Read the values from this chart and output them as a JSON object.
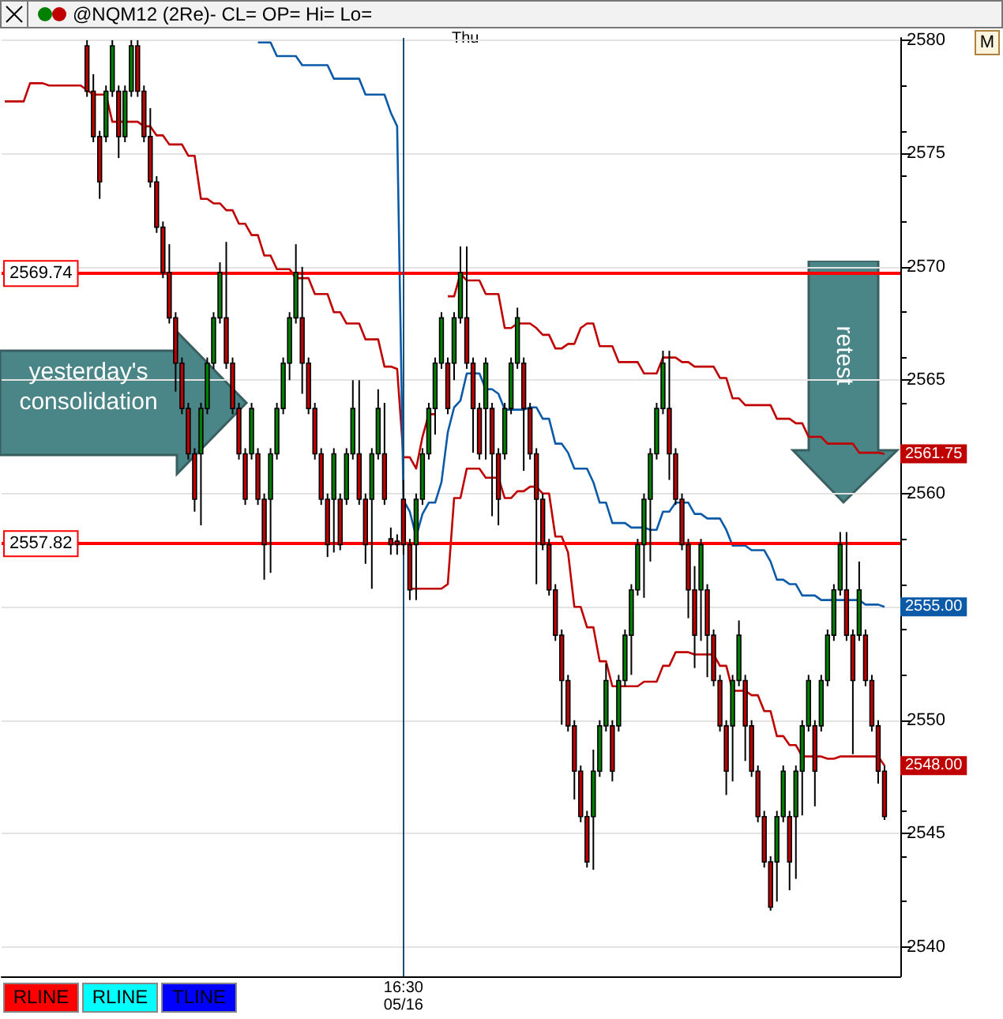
{
  "chart_data": {
    "type": "candlestick",
    "title": "@NQM12 (2Re)- CL= OP= Hi= Lo=",
    "annotations": [
      "Thu",
      "yesterday's consolidation",
      "retest",
      "M",
      "RLINE",
      "RLINE",
      "TLINE"
    ],
    "categories": [
      null,
      null,
      null,
      null,
      null,
      null,
      null,
      null,
      null,
      null,
      null,
      null,
      null,
      null,
      null,
      null,
      null,
      null,
      null,
      null,
      null,
      null,
      null,
      null,
      null,
      null,
      null,
      null,
      null,
      null,
      null,
      null,
      null,
      null,
      null,
      null,
      null,
      null,
      null,
      null,
      null,
      null,
      null,
      null,
      null,
      null,
      null,
      null,
      null,
      null,
      null,
      null,
      null,
      null,
      null,
      null,
      null,
      null,
      null,
      null,
      null,
      null,
      null,
      "16:30\n05/16",
      null,
      null,
      null,
      null,
      null,
      null,
      null,
      null,
      null,
      null,
      null,
      null,
      null,
      null,
      null,
      null,
      null,
      null,
      null,
      null,
      null,
      null,
      null,
      null,
      null,
      null,
      null,
      null,
      null,
      null,
      null,
      null,
      null,
      null,
      null,
      null,
      null,
      null,
      null,
      null,
      null,
      null,
      null,
      null,
      null,
      null,
      null,
      null,
      null,
      null,
      null,
      null,
      null,
      null,
      null,
      null,
      null,
      null,
      null,
      null,
      null,
      null,
      null,
      null,
      null,
      null,
      null,
      null,
      null,
      null,
      null,
      null,
      null,
      null,
      null,
      null,
      null,
      null
    ],
    "ohlc": [
      null,
      null,
      null,
      null,
      null,
      null,
      null,
      null,
      null,
      null,
      null,
      null,
      null,
      [
        2579.75,
        2580,
        2577.5,
        2577.75
      ],
      [
        2577.75,
        2578.5,
        2575.5,
        2575.75
      ],
      [
        2575.75,
        2576,
        2573,
        2573.75
      ],
      [
        2575.75,
        2578,
        2575.5,
        2577.75
      ],
      [
        2577.75,
        2580,
        2577.5,
        2579.75
      ],
      [
        2577.75,
        2578,
        2574.8,
        2575.75
      ],
      [
        2575.75,
        2578,
        2575.5,
        2577.75
      ],
      [
        2577.75,
        2580,
        2577.5,
        2579.75
      ],
      [
        2579.75,
        2580,
        2577.5,
        2577.75
      ],
      [
        2577.75,
        2578,
        2575.5,
        2575.75
      ],
      [
        2575.75,
        2577,
        2573.5,
        2573.75
      ],
      [
        2573.75,
        2574,
        2571.5,
        2571.75
      ],
      [
        2571.75,
        2572,
        2569.5,
        2569.75
      ],
      [
        2569.75,
        2571,
        2567.5,
        2567.75
      ],
      [
        2567.75,
        2568,
        2564.5,
        2565.75
      ],
      [
        2565.75,
        2566,
        2563.5,
        2563.75
      ],
      [
        2563.75,
        2564,
        2561.5,
        2561.75
      ],
      [
        2561.75,
        2562,
        2559.2,
        2559.75
      ],
      [
        2561.75,
        2564,
        2558.6,
        2563.75
      ],
      [
        2563.75,
        2566,
        2563.5,
        2565.75
      ],
      [
        2565.75,
        2568,
        2565.5,
        2567.75
      ],
      [
        2567.75,
        2570.2,
        2567.5,
        2569.75
      ],
      [
        2567.75,
        2571.1,
        2565.5,
        2565.75
      ],
      [
        2565.75,
        2566,
        2563.5,
        2563.75
      ],
      [
        2563.75,
        2564,
        2561.5,
        2561.75
      ],
      [
        2561.75,
        2562,
        2559.5,
        2559.75
      ],
      [
        2561.75,
        2564,
        2561.5,
        2563.75
      ],
      [
        2561.75,
        2562,
        2559.5,
        2559.75
      ],
      [
        2559.75,
        2560,
        2556.2,
        2557.75
      ],
      [
        2559.75,
        2562,
        2556.5,
        2561.75
      ],
      [
        2561.75,
        2564,
        2561.5,
        2563.75
      ],
      [
        2563.75,
        2566,
        2563.5,
        2565.75
      ],
      [
        2565.75,
        2568,
        2565,
        2567.75
      ],
      [
        2567.75,
        2571,
        2567.5,
        2569.75
      ],
      [
        2567.75,
        2570,
        2564.4,
        2565.75
      ],
      [
        2565.75,
        2566,
        2563.5,
        2563.75
      ],
      [
        2563.75,
        2564,
        2561.5,
        2561.75
      ],
      [
        2561.75,
        2562,
        2559.5,
        2559.75
      ],
      [
        2559.75,
        2560,
        2557.2,
        2557.75
      ],
      [
        2559.75,
        2562,
        2557.4,
        2561.75
      ],
      [
        2559.75,
        2560,
        2557.5,
        2557.75
      ],
      [
        2559.75,
        2562,
        2559.5,
        2561.75
      ],
      [
        2561.75,
        2565,
        2561.5,
        2563.75
      ],
      [
        2561.75,
        2565,
        2559.5,
        2559.75
      ],
      [
        2559.75,
        2560,
        2556.9,
        2557.75
      ],
      [
        2559.75,
        2562,
        2555.8,
        2561.75
      ],
      [
        2561.75,
        2564.6,
        2561.5,
        2563.75
      ],
      [
        2561.75,
        2564,
        2559.5,
        2559.75
      ],
      [
        2558,
        2558.5,
        2557.3,
        2557.75
      ],
      [
        2557.9,
        2558.2,
        2557.3,
        2557.75
      ],
      [
        2559.75,
        2560.6,
        2557.3,
        2557.75
      ],
      [
        2557.75,
        2558,
        2555.3,
        2555.75
      ],
      [
        2557.75,
        2560,
        2555.3,
        2559.75
      ],
      [
        2559.75,
        2562,
        2559.5,
        2561.75
      ],
      [
        2561.75,
        2564,
        2561.5,
        2563.75
      ],
      [
        2563.75,
        2566,
        2562.6,
        2565.75
      ],
      [
        2565.75,
        2568,
        2565.5,
        2567.75
      ],
      [
        2565.75,
        2566,
        2563.5,
        2563.75
      ],
      [
        2565.75,
        2568,
        2565,
        2567.75
      ],
      [
        2567.75,
        2570.9,
        2567.5,
        2569.75
      ],
      [
        2567.75,
        2570.9,
        2565.5,
        2565.75
      ],
      [
        2565.75,
        2566,
        2561.8,
        2563.75
      ],
      [
        2563.75,
        2564,
        2561.5,
        2561.75
      ],
      [
        2563.75,
        2566,
        2561.5,
        2565.75
      ],
      [
        2563.75,
        2564,
        2559,
        2561.75
      ],
      [
        2561.75,
        2562,
        2558.6,
        2559.75
      ],
      [
        2561.75,
        2564,
        2561.5,
        2563.75
      ],
      [
        2563.75,
        2566,
        2563.5,
        2565.75
      ],
      [
        2565.75,
        2568.2,
        2565.5,
        2567.75
      ],
      [
        2565.75,
        2566,
        2561,
        2563.75
      ],
      [
        2563.75,
        2564,
        2561.5,
        2561.75
      ],
      [
        2561.75,
        2562,
        2556,
        2559.75
      ],
      [
        2559.75,
        2560,
        2557.5,
        2557.75
      ],
      [
        2557.75,
        2558,
        2555.5,
        2555.75
      ],
      [
        2555.75,
        2556,
        2553.5,
        2553.75
      ],
      [
        2553.75,
        2554,
        2549.8,
        2551.75
      ],
      [
        2551.75,
        2552,
        2549.5,
        2549.75
      ],
      [
        2549.75,
        2550,
        2546.5,
        2547.75
      ],
      [
        2547.75,
        2548,
        2545.5,
        2545.75
      ],
      [
        2545.75,
        2546,
        2543.5,
        2543.75
      ],
      [
        2545.75,
        2548.7,
        2543.4,
        2547.75
      ],
      [
        2547.75,
        2550,
        2547.5,
        2549.75
      ],
      [
        2549.75,
        2552.5,
        2549.5,
        2551.75
      ],
      [
        2549.75,
        2550,
        2547.3,
        2547.75
      ],
      [
        2549.75,
        2552,
        2549.5,
        2551.75
      ],
      [
        2551.75,
        2554,
        2551.5,
        2553.75
      ],
      [
        2553.75,
        2556,
        2552,
        2555.75
      ],
      [
        2555.75,
        2558,
        2555.5,
        2557.75
      ],
      [
        2557.75,
        2560,
        2555.4,
        2559.75
      ],
      [
        2559.75,
        2562,
        2557,
        2561.75
      ],
      [
        2561.75,
        2564,
        2561.5,
        2563.75
      ],
      [
        2563.75,
        2566.3,
        2563.5,
        2565.75
      ],
      [
        2563.75,
        2566.3,
        2560.6,
        2561.75
      ],
      [
        2561.75,
        2562,
        2559.5,
        2559.75
      ],
      [
        2559.75,
        2560,
        2557.5,
        2557.75
      ],
      [
        2557.75,
        2558,
        2554.5,
        2555.75
      ],
      [
        2555.75,
        2556.8,
        2552.3,
        2553.75
      ],
      [
        2555.75,
        2558,
        2553.5,
        2557.75
      ],
      [
        2555.75,
        2556,
        2551.9,
        2553.75
      ],
      [
        2553.75,
        2554,
        2551.5,
        2551.75
      ],
      [
        2551.75,
        2552,
        2549.5,
        2549.75
      ],
      [
        2549.75,
        2550,
        2546.7,
        2547.75
      ],
      [
        2549.75,
        2552,
        2547.3,
        2551.75
      ],
      [
        2551.75,
        2554.4,
        2551.5,
        2553.75
      ],
      [
        2551.75,
        2552,
        2548.2,
        2549.75
      ],
      [
        2549.75,
        2550,
        2547.5,
        2547.75
      ],
      [
        2547.75,
        2548,
        2545.5,
        2545.75
      ],
      [
        2545.75,
        2546,
        2543.5,
        2543.75
      ],
      [
        2543.75,
        2544,
        2541.6,
        2541.75
      ],
      [
        2543.75,
        2546,
        2542,
        2545.75
      ],
      [
        2545.75,
        2548,
        2545.5,
        2547.75
      ],
      [
        2545.75,
        2546,
        2542.5,
        2543.75
      ],
      [
        2545.75,
        2548,
        2543,
        2547.75
      ],
      [
        2547.75,
        2550,
        2545.8,
        2549.75
      ],
      [
        2549.75,
        2552,
        2549.5,
        2551.75
      ],
      [
        2549.75,
        2550,
        2546.2,
        2547.75
      ],
      [
        2549.75,
        2552,
        2549.5,
        2551.75
      ],
      [
        2551.75,
        2554,
        2551.5,
        2553.75
      ],
      [
        2553.75,
        2556,
        2553.5,
        2555.75
      ],
      [
        2555.75,
        2558.3,
        2555.5,
        2557.75
      ],
      [
        2555.75,
        2558.3,
        2553.5,
        2553.75
      ],
      [
        2553.75,
        2554,
        2548.5,
        2551.75
      ],
      [
        2553.75,
        2557,
        2553.5,
        2555.75
      ],
      [
        2553.75,
        2554,
        2551.5,
        2551.75
      ],
      [
        2551.75,
        2552,
        2549.5,
        2549.75
      ],
      [
        2549.75,
        2550,
        2547.2,
        2547.75
      ],
      [
        2547.75,
        2548,
        2545.6,
        2545.75
      ],
      null,
      null
    ],
    "series": [
      {
        "type": "line",
        "color": "#c00000",
        "values": [
          2577.3,
          2577.3,
          2577.3,
          2577.3,
          2578.1,
          2578.1,
          2578.1,
          2578.0,
          2578.0,
          2578.0,
          2578.0,
          2578.0,
          2578.0,
          2577.8,
          2577.6,
          2577.6,
          2577.6,
          2576.4,
          2576.4,
          2576.4,
          2576.4,
          2576.4,
          2576.2,
          2576.2,
          2575.8,
          2575.8,
          2575.4,
          2575.4,
          2575.4,
          2574.9,
          2574.9,
          2573.0,
          2573.0,
          2572.8,
          2572.8,
          2572.5,
          2572.5,
          2571.9,
          2571.9,
          2571.4,
          2571.4,
          2570.5,
          2570.5,
          2569.9,
          2569.9,
          2569.9,
          2569.5,
          2569.5,
          2569.5,
          2568.8,
          2568.8,
          2568.8,
          2568.0,
          2568.0,
          2567.5,
          2567.5,
          2567.5,
          2566.8,
          2566.8,
          2566.8,
          2565.6,
          2565.6,
          2565.5,
          2561.6,
          2561.6,
          2561.1,
          2562.5,
          2563.5,
          2563.5,
          null,
          2568.7,
          2568.7,
          2569.7,
          2569.4,
          2569.4,
          2569.4,
          2568.8,
          2568.8,
          2568.8,
          2567.3,
          2567.3,
          2567.5,
          2567.5,
          2567.5,
          2567.3,
          2567.0,
          2567.0,
          2566.4,
          2566.4,
          2566.6,
          2566.6,
          2567.3,
          2567.5,
          2567.5,
          2566.5,
          2566.5,
          2566.5,
          2565.8,
          2565.8,
          2565.8,
          2565.8,
          2565.3,
          2565.3,
          2565.3,
          2566.0,
          2566.0,
          2566.0,
          2565.8,
          2565.8,
          2565.6,
          2565.6,
          2565.6,
          2565.6,
          2565.1,
          2565.1,
          2564.2,
          2564.2,
          2563.9,
          2563.9,
          2563.9,
          2563.9,
          2563.9,
          2563.3,
          2563.3,
          2563.3,
          2563.1,
          2563.1,
          2562.5,
          2562.5,
          2562.5,
          2562.2,
          2562.2,
          2562.2,
          2562.2,
          2562.2,
          2561.8,
          2561.8,
          2561.8,
          2561.8,
          2561.75,
          null,
          null
        ],
        "value_labels": [
          null,
          null,
          null,
          null,
          null,
          null,
          null,
          null,
          null,
          null,
          null,
          null,
          null,
          null,
          null,
          null,
          null,
          null,
          null,
          null,
          null,
          null,
          null,
          null,
          null,
          null,
          null,
          null,
          null,
          null,
          null,
          null,
          null,
          null,
          null,
          null,
          null,
          null,
          null,
          null,
          null,
          null,
          null,
          null,
          null,
          null,
          null,
          null,
          null,
          null,
          null,
          null,
          null,
          null,
          null,
          null,
          null,
          null,
          null,
          null,
          null,
          null,
          null,
          null,
          null,
          null,
          null,
          null,
          null,
          null,
          null,
          null,
          null,
          null,
          null,
          null,
          null,
          null,
          null,
          null,
          null,
          null,
          null,
          null,
          null,
          null,
          null,
          null,
          null,
          null,
          null,
          null,
          null,
          null,
          null,
          null,
          null,
          null,
          null,
          null,
          null,
          null,
          null,
          null,
          null,
          null,
          null,
          null,
          null,
          null,
          null,
          null,
          null,
          null,
          null,
          null,
          null,
          null,
          null,
          null,
          null,
          null,
          null,
          null,
          null,
          null,
          null,
          null,
          null,
          null,
          null,
          null,
          null,
          null,
          null,
          null,
          null,
          null,
          null,
          "2561.75",
          null,
          null
        ]
      },
      {
        "type": "line",
        "color": "#0a5aa8",
        "values": [
          null,
          null,
          null,
          null,
          null,
          null,
          null,
          null,
          null,
          null,
          null,
          null,
          null,
          null,
          null,
          null,
          null,
          null,
          null,
          null,
          null,
          null,
          null,
          null,
          null,
          null,
          null,
          null,
          null,
          null,
          null,
          null,
          null,
          null,
          null,
          null,
          null,
          null,
          null,
          null,
          2579.9,
          2579.9,
          2579.9,
          2579.3,
          2579.3,
          2579.3,
          2579.3,
          2578.9,
          2578.9,
          2578.9,
          2578.9,
          2578.9,
          2578.3,
          2578.3,
          2578.3,
          2578.3,
          2578.3,
          2577.6,
          2577.6,
          2577.6,
          2577.6,
          2576.8,
          2576.2,
          2559.7,
          2559.2,
          2558.1,
          2559.1,
          2559.6,
          2559.6,
          2560.5,
          2562.7,
          2563.8,
          2564.1,
          2565.3,
          2565.3,
          2565.3,
          2564.6,
          2564.6,
          2564.4,
          2563.7,
          2563.7,
          2563.7,
          2563.7,
          2563.8,
          2563.8,
          2563.3,
          2563.3,
          2562.2,
          2562.2,
          2561.8,
          2561.1,
          2561.1,
          2561.1,
          2560.5,
          2559.6,
          2559.6,
          2558.7,
          2558.7,
          2558.7,
          2558.5,
          2558.5,
          2558.5,
          2558.4,
          2558.4,
          2559.2,
          2559.2,
          2559.6,
          2559.6,
          2559.6,
          2559.1,
          2559.1,
          2558.9,
          2558.9,
          2558.9,
          2558.4,
          2557.7,
          2557.7,
          2557.7,
          2557.5,
          2557.5,
          2557.5,
          2557.0,
          2556.2,
          2556.2,
          2556.0,
          2556.0,
          2555.5,
          2555.5,
          2555.5,
          2555.3,
          2555.3,
          2555.3,
          2555.3,
          2555.3,
          2555.3,
          2555.3,
          2555.1,
          2555.1,
          2555.1,
          2555.0,
          null,
          null
        ],
        "value_labels": [
          null,
          null,
          null,
          null,
          null,
          null,
          null,
          null,
          null,
          null,
          null,
          null,
          null,
          null,
          null,
          null,
          null,
          null,
          null,
          null,
          null,
          null,
          null,
          null,
          null,
          null,
          null,
          null,
          null,
          null,
          null,
          null,
          null,
          null,
          null,
          null,
          null,
          null,
          null,
          null,
          null,
          null,
          null,
          null,
          null,
          null,
          null,
          null,
          null,
          null,
          null,
          null,
          null,
          null,
          null,
          null,
          null,
          null,
          null,
          null,
          null,
          null,
          null,
          null,
          null,
          null,
          null,
          null,
          null,
          null,
          null,
          null,
          null,
          null,
          null,
          null,
          null,
          null,
          null,
          null,
          null,
          null,
          null,
          null,
          null,
          null,
          null,
          null,
          null,
          null,
          null,
          null,
          null,
          null,
          null,
          null,
          null,
          null,
          null,
          null,
          null,
          null,
          null,
          null,
          null,
          null,
          null,
          null,
          null,
          null,
          null,
          null,
          null,
          null,
          null,
          null,
          null,
          null,
          null,
          null,
          null,
          null,
          null,
          null,
          null,
          null,
          null,
          null,
          null,
          null,
          null,
          null,
          null,
          null,
          null,
          null,
          null,
          null,
          null,
          "2555.00",
          null,
          null
        ]
      },
      {
        "type": "line",
        "color": "#c00000",
        "values": [
          null,
          null,
          null,
          null,
          null,
          null,
          null,
          null,
          null,
          null,
          null,
          null,
          null,
          null,
          null,
          null,
          null,
          null,
          null,
          null,
          null,
          null,
          null,
          null,
          null,
          null,
          null,
          null,
          null,
          null,
          null,
          null,
          null,
          null,
          null,
          null,
          null,
          null,
          null,
          null,
          null,
          null,
          null,
          null,
          null,
          null,
          null,
          null,
          null,
          null,
          null,
          null,
          null,
          null,
          null,
          null,
          null,
          null,
          null,
          null,
          null,
          null,
          null,
          null,
          2555.8,
          2555.8,
          2555.8,
          2555.8,
          2555.8,
          2555.8,
          2556.0,
          2559.8,
          2559.8,
          2561.1,
          2561.1,
          2561.1,
          2560.7,
          2560.7,
          2560.7,
          2559.8,
          2559.8,
          2560.1,
          2560.1,
          2560.3,
          2560.3,
          2560.0,
          2560.0,
          2558.1,
          2558.1,
          2557.4,
          2555.0,
          2555.0,
          2554.1,
          2554.1,
          2552.6,
          2552.6,
          2551.5,
          2551.5,
          2551.5,
          2551.5,
          2551.5,
          2551.7,
          2551.7,
          2551.7,
          2552.4,
          2552.4,
          2553.0,
          2553.0,
          2553.0,
          2552.9,
          2552.9,
          2552.9,
          2552.9,
          2552.4,
          2552.4,
          2551.3,
          2551.3,
          2551.3,
          2551.1,
          2551.1,
          2550.4,
          2550.4,
          2549.3,
          2549.3,
          2548.9,
          2548.9,
          2548.4,
          2548.4,
          2548.4,
          2548.4,
          2548.3,
          2548.3,
          2548.4,
          2548.4,
          2548.4,
          2548.4,
          2548.4,
          2548.4,
          2548.4,
          2548.0,
          null,
          null
        ],
        "value_labels": [
          null,
          null,
          null,
          null,
          null,
          null,
          null,
          null,
          null,
          null,
          null,
          null,
          null,
          null,
          null,
          null,
          null,
          null,
          null,
          null,
          null,
          null,
          null,
          null,
          null,
          null,
          null,
          null,
          null,
          null,
          null,
          null,
          null,
          null,
          null,
          null,
          null,
          null,
          null,
          null,
          null,
          null,
          null,
          null,
          null,
          null,
          null,
          null,
          null,
          null,
          null,
          null,
          null,
          null,
          null,
          null,
          null,
          null,
          null,
          null,
          null,
          null,
          null,
          null,
          null,
          null,
          null,
          null,
          null,
          null,
          null,
          null,
          null,
          null,
          null,
          null,
          null,
          null,
          null,
          null,
          null,
          null,
          null,
          null,
          null,
          null,
          null,
          null,
          null,
          null,
          null,
          null,
          null,
          null,
          null,
          null,
          null,
          null,
          null,
          null,
          null,
          null,
          null,
          null,
          null,
          null,
          null,
          null,
          null,
          null,
          null,
          null,
          null,
          null,
          null,
          null,
          null,
          null,
          null,
          null,
          null,
          null,
          null,
          null,
          null,
          null,
          null,
          null,
          null,
          null,
          null,
          null,
          null,
          null,
          null,
          null,
          null,
          null,
          null,
          "2548.00",
          null,
          null
        ]
      }
    ],
    "ref_lines": [
      {
        "axis": "y",
        "value": 2569.74,
        "label": "2569.74",
        "color": "#ff0000"
      },
      {
        "axis": "y",
        "value": 2557.82,
        "label": "2557.82",
        "color": "#ff0000"
      },
      {
        "axis": "x",
        "value": "16:30\n05/16",
        "color": "#1b4f72"
      }
    ],
    "ylim": [
      2538.7,
      2580.1
    ],
    "yticks": [
      2540,
      2545,
      2550,
      {
        "value": 2555,
        "label": null
      },
      2560,
      2565,
      2570,
      2575,
      2580
    ],
    "grid": "y"
  }
}
